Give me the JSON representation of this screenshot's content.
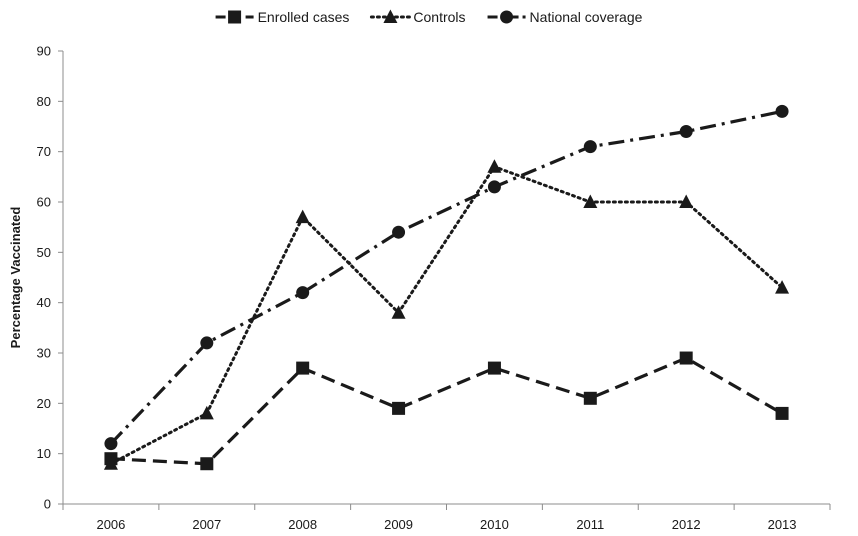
{
  "chart_data": {
    "type": "line",
    "title": "",
    "xlabel": "",
    "ylabel": "Percentage Vaccinated",
    "categories": [
      "2006",
      "2007",
      "2008",
      "2009",
      "2010",
      "2011",
      "2012",
      "2013"
    ],
    "ylim": [
      0,
      90
    ],
    "yticks": [
      0,
      10,
      20,
      30,
      40,
      50,
      60,
      70,
      80,
      90
    ],
    "grid": false,
    "legend_position": "top",
    "series": [
      {
        "name": "Enrolled cases",
        "marker": "square",
        "line_style": "dashed",
        "color": "#1a1a1a",
        "values": [
          9,
          8,
          27,
          19,
          27,
          21,
          29,
          18
        ]
      },
      {
        "name": "Controls",
        "marker": "triangle",
        "line_style": "dotted",
        "color": "#1a1a1a",
        "values": [
          8,
          18,
          57,
          38,
          67,
          60,
          60,
          43
        ]
      },
      {
        "name": "National coverage",
        "marker": "circle",
        "line_style": "dash-dot",
        "color": "#1a1a1a",
        "values": [
          12,
          32,
          42,
          54,
          63,
          71,
          74,
          78
        ]
      }
    ]
  }
}
